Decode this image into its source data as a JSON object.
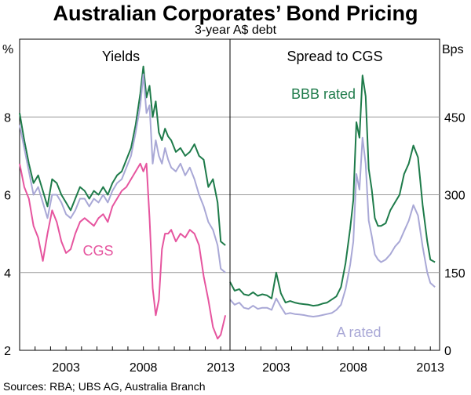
{
  "title": "Australian Corporates’ Bond Pricing",
  "subtitle": "3-year A$ debt",
  "source": "Sources: RBA; UBS AG, Australia Branch",
  "chart_data": {
    "type": "line",
    "panels": [
      {
        "title": "Yields",
        "y_unit": "%",
        "ylim": [
          2,
          10
        ],
        "yticks": [
          2,
          4,
          6,
          8
        ],
        "xlim": [
          2000.0,
          2013.6
        ],
        "xticks": [
          2003,
          2008,
          2013
        ],
        "series": [
          {
            "name": "BBB rated",
            "color": "#1e7b4a",
            "label": "",
            "x": [
              2000.0,
              2000.3,
              2000.6,
              2000.9,
              2001.2,
              2001.5,
              2001.8,
              2002.1,
              2002.4,
              2002.7,
              2003.0,
              2003.3,
              2003.6,
              2003.9,
              2004.2,
              2004.5,
              2004.8,
              2005.1,
              2005.4,
              2005.7,
              2006.0,
              2006.3,
              2006.6,
              2006.9,
              2007.2,
              2007.5,
              2007.8,
              2008.0,
              2008.2,
              2008.4,
              2008.6,
              2008.8,
              2009.0,
              2009.2,
              2009.4,
              2009.6,
              2009.8,
              2010.1,
              2010.4,
              2010.7,
              2011.0,
              2011.3,
              2011.6,
              2011.9,
              2012.2,
              2012.5,
              2012.8,
              2013.0,
              2013.3
            ],
            "y": [
              8.1,
              7.4,
              6.8,
              6.3,
              6.5,
              6.1,
              5.7,
              6.4,
              6.3,
              6.0,
              5.8,
              5.6,
              5.9,
              6.2,
              6.1,
              5.9,
              6.1,
              6.0,
              6.2,
              6.0,
              6.3,
              6.5,
              6.6,
              6.9,
              7.2,
              7.8,
              8.6,
              9.3,
              8.5,
              8.8,
              8.0,
              8.4,
              7.6,
              7.4,
              7.7,
              7.5,
              7.4,
              7.1,
              7.2,
              7.0,
              7.1,
              7.3,
              7.0,
              6.9,
              6.2,
              6.4,
              5.8,
              4.8,
              4.7
            ]
          },
          {
            "name": "A rated",
            "color": "#a9a8d6",
            "label": "",
            "x": [
              2000.0,
              2000.3,
              2000.6,
              2000.9,
              2001.2,
              2001.5,
              2001.8,
              2002.1,
              2002.4,
              2002.7,
              2003.0,
              2003.3,
              2003.6,
              2003.9,
              2004.2,
              2004.5,
              2004.8,
              2005.1,
              2005.4,
              2005.7,
              2006.0,
              2006.3,
              2006.6,
              2006.9,
              2007.2,
              2007.5,
              2007.8,
              2008.0,
              2008.2,
              2008.4,
              2008.6,
              2008.8,
              2009.0,
              2009.2,
              2009.4,
              2009.6,
              2009.8,
              2010.1,
              2010.4,
              2010.7,
              2011.0,
              2011.3,
              2011.6,
              2011.9,
              2012.2,
              2012.5,
              2012.8,
              2013.0,
              2013.3
            ],
            "y": [
              7.8,
              7.2,
              6.6,
              6.0,
              6.2,
              5.8,
              5.4,
              6.0,
              6.0,
              5.8,
              5.5,
              5.4,
              5.6,
              5.9,
              5.9,
              5.7,
              5.9,
              5.8,
              6.0,
              5.8,
              6.1,
              6.3,
              6.4,
              6.7,
              7.0,
              7.6,
              8.3,
              9.1,
              8.1,
              8.3,
              6.8,
              7.4,
              7.0,
              6.8,
              7.2,
              6.9,
              6.7,
              6.6,
              6.8,
              6.5,
              6.7,
              6.4,
              6.0,
              5.7,
              5.3,
              5.1,
              4.7,
              4.1,
              4.0
            ]
          },
          {
            "name": "CGS",
            "color": "#e6559f",
            "label": "CGS",
            "x": [
              2000.0,
              2000.3,
              2000.6,
              2000.9,
              2001.2,
              2001.5,
              2001.8,
              2002.1,
              2002.4,
              2002.7,
              2003.0,
              2003.3,
              2003.6,
              2003.9,
              2004.2,
              2004.5,
              2004.8,
              2005.1,
              2005.4,
              2005.7,
              2006.0,
              2006.3,
              2006.6,
              2006.9,
              2007.2,
              2007.5,
              2007.8,
              2008.0,
              2008.2,
              2008.4,
              2008.6,
              2008.8,
              2009.0,
              2009.2,
              2009.4,
              2009.6,
              2009.8,
              2010.1,
              2010.4,
              2010.7,
              2011.0,
              2011.3,
              2011.6,
              2011.9,
              2012.2,
              2012.5,
              2012.8,
              2013.0,
              2013.3
            ],
            "y": [
              6.8,
              6.2,
              5.9,
              5.2,
              4.9,
              4.3,
              5.0,
              5.6,
              5.3,
              4.8,
              4.5,
              4.6,
              5.0,
              5.3,
              5.4,
              5.3,
              5.2,
              5.4,
              5.5,
              5.3,
              5.7,
              5.9,
              6.1,
              6.2,
              6.4,
              6.6,
              6.8,
              6.6,
              6.8,
              5.4,
              3.6,
              2.9,
              3.3,
              4.6,
              5.0,
              5.0,
              5.1,
              4.8,
              5.0,
              4.9,
              5.1,
              5.0,
              4.7,
              3.9,
              3.3,
              2.6,
              2.3,
              2.4,
              2.9
            ]
          }
        ]
      },
      {
        "title": "Spread to CGS",
        "y_unit": "Bps",
        "ylim": [
          0,
          600
        ],
        "yticks": [
          0,
          150,
          300,
          450
        ],
        "xlim": [
          2000.0,
          2013.6
        ],
        "xticks": [
          2003,
          2008,
          2013
        ],
        "series": [
          {
            "name": "BBB rated",
            "color": "#1e7b4a",
            "label": "BBB rated",
            "x": [
              2000.0,
              2000.3,
              2000.6,
              2000.9,
              2001.2,
              2001.5,
              2001.8,
              2002.1,
              2002.4,
              2002.7,
              2003.0,
              2003.3,
              2003.6,
              2003.9,
              2004.2,
              2004.5,
              2004.8,
              2005.1,
              2005.4,
              2005.7,
              2006.0,
              2006.3,
              2006.6,
              2006.9,
              2007.2,
              2007.5,
              2007.8,
              2008.0,
              2008.2,
              2008.4,
              2008.6,
              2008.8,
              2009.0,
              2009.2,
              2009.4,
              2009.6,
              2009.8,
              2010.1,
              2010.4,
              2010.7,
              2011.0,
              2011.3,
              2011.6,
              2011.9,
              2012.2,
              2012.5,
              2012.8,
              2013.0,
              2013.3
            ],
            "y": [
              132,
              115,
              118,
              108,
              106,
              112,
              105,
              108,
              106,
              100,
              150,
              110,
              92,
              95,
              92,
              90,
              89,
              88,
              86,
              87,
              90,
              92,
              98,
              104,
              122,
              168,
              235,
              290,
              440,
              410,
              530,
              490,
              350,
              310,
              255,
              240,
              240,
              245,
              270,
              285,
              300,
              340,
              360,
              395,
              372,
              280,
              210,
              175,
              170
            ]
          },
          {
            "name": "A rated",
            "color": "#a9a8d6",
            "label": "A rated",
            "x": [
              2000.0,
              2000.3,
              2000.6,
              2000.9,
              2001.2,
              2001.5,
              2001.8,
              2002.1,
              2002.4,
              2002.7,
              2003.0,
              2003.3,
              2003.6,
              2003.9,
              2004.2,
              2004.5,
              2004.8,
              2005.1,
              2005.4,
              2005.7,
              2006.0,
              2006.3,
              2006.6,
              2006.9,
              2007.2,
              2007.5,
              2007.8,
              2008.0,
              2008.2,
              2008.4,
              2008.6,
              2008.8,
              2009.0,
              2009.2,
              2009.4,
              2009.6,
              2009.8,
              2010.1,
              2010.4,
              2010.7,
              2011.0,
              2011.3,
              2011.6,
              2011.9,
              2012.2,
              2012.5,
              2012.8,
              2013.0,
              2013.3
            ],
            "y": [
              98,
              88,
              92,
              82,
              80,
              86,
              80,
              82,
              82,
              78,
              100,
              84,
              70,
              72,
              70,
              69,
              68,
              66,
              65,
              66,
              68,
              70,
              72,
              78,
              88,
              118,
              165,
              210,
              340,
              310,
              410,
              360,
              250,
              220,
              185,
              175,
              170,
              175,
              185,
              200,
              210,
              230,
              250,
              280,
              260,
              200,
              150,
              130,
              122
            ]
          }
        ]
      }
    ]
  }
}
